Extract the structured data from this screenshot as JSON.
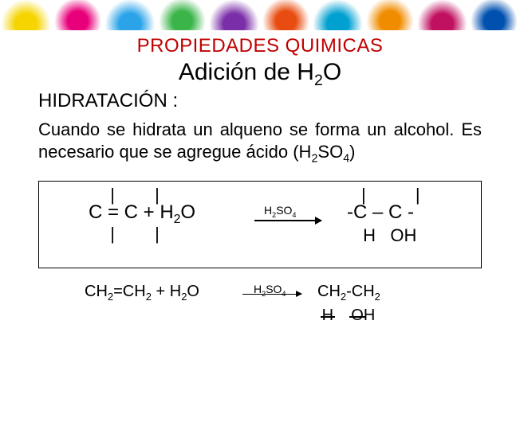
{
  "banner_colors": [
    "#f5d400",
    "#e8007a",
    "#2aa3e8",
    "#3bb54a",
    "#7a2ea8",
    "#e84c10",
    "#00a0d0",
    "#f08c00",
    "#c01060",
    "#0050b0"
  ],
  "title1": "PROPIEDADES QUIMICAS",
  "title2_pre": "Adición de H",
  "title2_sub": "2",
  "title2_post": "O",
  "section": "HIDRATACIÓN :",
  "paragraph_pre": "Cuando se hidrata un alqueno se forma un alcohol.   Es necesario que se agregue ácido (H",
  "paragraph_sub1": "2",
  "paragraph_mid": "SO",
  "paragraph_sub2": "4",
  "paragraph_post": ")",
  "rx1": {
    "left_top": "|   |",
    "left_main_1": "C = C  +  H",
    "left_sub": "2",
    "left_main_2": "O",
    "left_bot": "|   |",
    "catalyst_1": "H",
    "catalyst_s1": "2",
    "catalyst_2": "SO",
    "catalyst_s2": "4",
    "right_top": "|    |",
    "right_main": "-C – C -",
    "right_lab1": "H",
    "right_lab2": "OH"
  },
  "rx2": {
    "left_1": "CH",
    "left_s1": "2",
    "left_2": "=CH",
    "left_s2": "2",
    "left_3": " + H",
    "left_s3": "2",
    "left_4": "O",
    "catalyst_1": "H",
    "catalyst_s1": "2",
    "catalyst_2": "SO",
    "catalyst_s2": "4",
    "right_1": "CH",
    "right_s1": "2",
    "right_2": "-CH",
    "right_s2": "2",
    "lab_h": "H",
    "lab_oh_o": "O",
    "lab_oh_h": "H"
  }
}
